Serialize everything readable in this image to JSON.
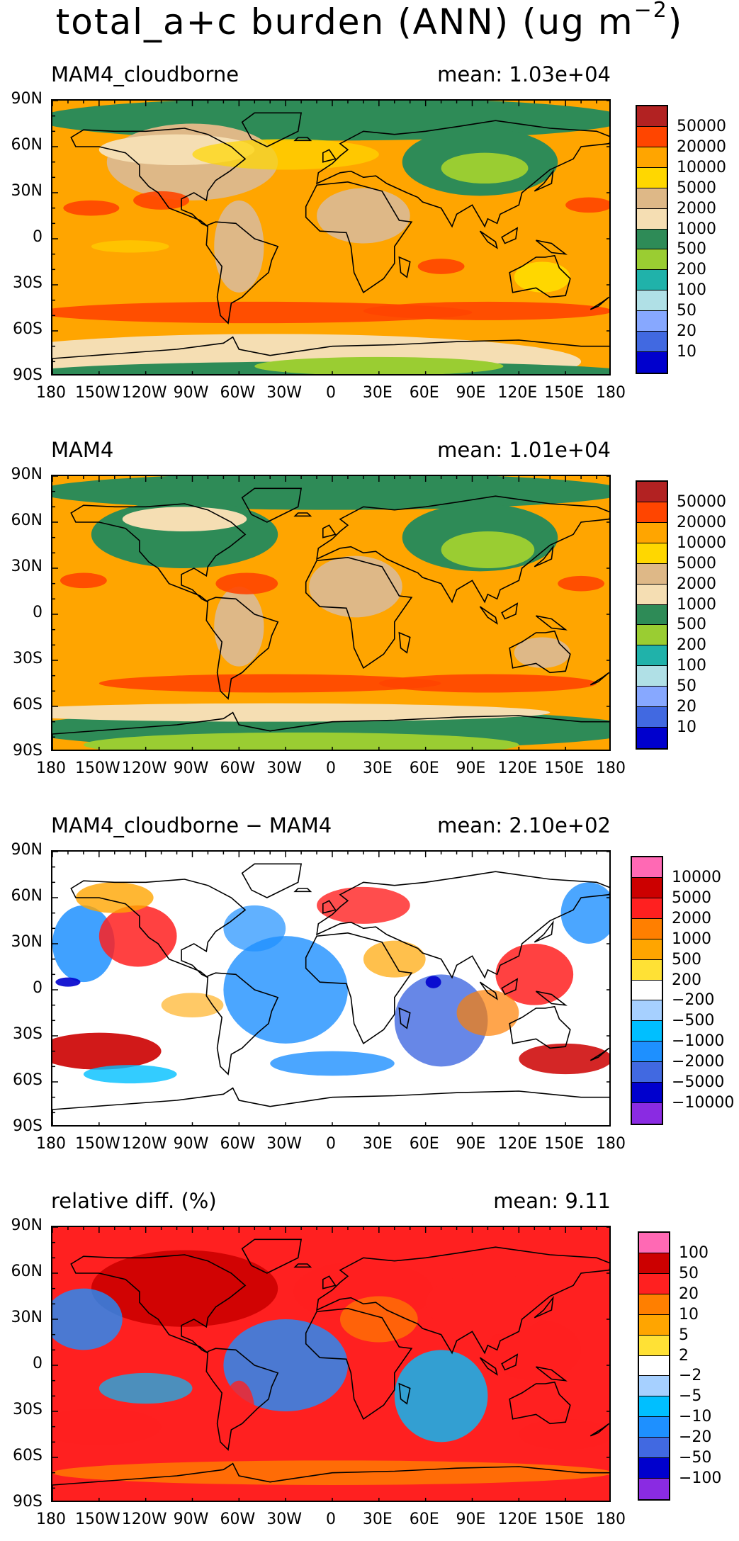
{
  "title": {
    "main": "total_a+c burden (ANN) (ug m",
    "unit_exp": "−2",
    "close": ")"
  },
  "lat_labels": [
    "90N",
    "60N",
    "30N",
    "0",
    "30S",
    "60S",
    "90S"
  ],
  "lon_labels": [
    "180",
    "150W",
    "120W",
    "90W",
    "60W",
    "30W",
    "0",
    "30E",
    "60E",
    "90E",
    "120E",
    "150E",
    "180"
  ],
  "panels": [
    {
      "label": "MAM4_cloudborne",
      "mean": "mean: 1.03e+04",
      "colorbar": {
        "colors": [
          "#b22222",
          "#ff4500",
          "#ffa500",
          "#ffd700",
          "#deb887",
          "#f5deb3",
          "#2e8b57",
          "#9acd32",
          "#20b2aa",
          "#b0e0e6",
          "#87a8ff",
          "#4169e1",
          "#0000cd"
        ],
        "labels": [
          "50000",
          "20000",
          "10000",
          "5000",
          "2000",
          "1000",
          "500",
          "200",
          "100",
          "50",
          "20",
          "10"
        ]
      }
    },
    {
      "label": "MAM4",
      "mean": "mean: 1.01e+04",
      "colorbar": {
        "colors": [
          "#b22222",
          "#ff4500",
          "#ffa500",
          "#ffd700",
          "#deb887",
          "#f5deb3",
          "#2e8b57",
          "#9acd32",
          "#20b2aa",
          "#b0e0e6",
          "#87a8ff",
          "#4169e1",
          "#0000cd"
        ],
        "labels": [
          "50000",
          "20000",
          "10000",
          "5000",
          "2000",
          "1000",
          "500",
          "200",
          "100",
          "50",
          "20",
          "10"
        ]
      }
    },
    {
      "label": "MAM4_cloudborne − MAM4",
      "mean": "mean: 2.10e+02",
      "colorbar": {
        "colors": [
          "#ff69b4",
          "#cc0000",
          "#ff2020",
          "#ff7f00",
          "#ffa500",
          "#ffe135",
          "#ffffff",
          "#a6d0ff",
          "#00bfff",
          "#1e90ff",
          "#4169e1",
          "#0000cd",
          "#8a2be2"
        ],
        "labels": [
          "10000",
          "5000",
          "2000",
          "1000",
          "500",
          "200",
          "−200",
          "−500",
          "−1000",
          "−2000",
          "−5000",
          "−10000"
        ]
      }
    },
    {
      "label": "relative diff. (%)",
      "mean": "mean:  9.11",
      "colorbar": {
        "colors": [
          "#ff69b4",
          "#cc0000",
          "#ff2020",
          "#ff7f00",
          "#ffa500",
          "#ffe135",
          "#ffffff",
          "#a6d0ff",
          "#00bfff",
          "#1e90ff",
          "#4169e1",
          "#0000cd",
          "#8a2be2"
        ],
        "labels": [
          "100",
          "50",
          "20",
          "10",
          "5",
          "2",
          "−2",
          "−5",
          "−10",
          "−20",
          "−50",
          "−100"
        ]
      }
    }
  ]
}
